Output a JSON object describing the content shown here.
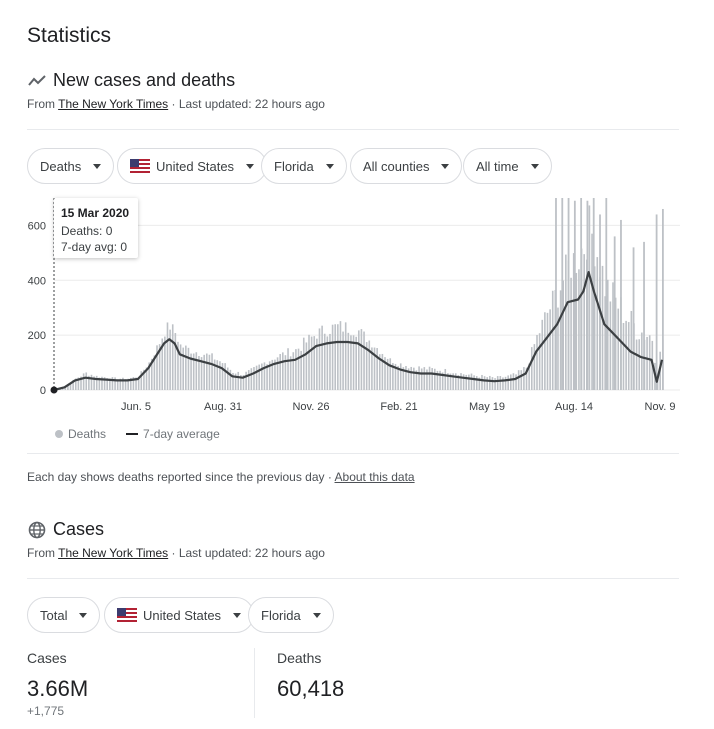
{
  "page_title": "Statistics",
  "section1": {
    "title": "New cases and deaths",
    "icon": "trend-icon",
    "source_prefix": "From ",
    "source_link": "The New York Times",
    "updated": " · Last updated: 22 hours ago",
    "filters": [
      {
        "label": "Deaths",
        "has_flag": false
      },
      {
        "label": "United States",
        "has_flag": true
      },
      {
        "label": "Florida",
        "has_flag": false
      },
      {
        "label": "All counties",
        "has_flag": false
      },
      {
        "label": "All time",
        "has_flag": false
      }
    ],
    "tooltip": {
      "date": "15 Mar 2020",
      "deaths": "Deaths: 0",
      "avg": "7-day avg: 0"
    },
    "legend": {
      "deaths": "Deaths",
      "avg": "7-day average"
    },
    "note": "Each day shows deaths reported since the previous day",
    "note_sep": " · ",
    "note_link": "About this data"
  },
  "chart_data": {
    "type": "bar",
    "y_ticks": [
      "0",
      "200",
      "400",
      "600"
    ],
    "x_ticks": [
      "Jun. 5",
      "Aug. 31",
      "Nov. 26",
      "Feb. 21",
      "May 19",
      "Aug. 14",
      "Nov. 9"
    ],
    "ylim": [
      0,
      700
    ],
    "series": [
      {
        "name": "Deaths",
        "color": "#bdc1c6"
      },
      {
        "name": "7-day average",
        "color": "#3c4043"
      }
    ],
    "avg_curve": [
      [
        0,
        0
      ],
      [
        10,
        10
      ],
      [
        20,
        35
      ],
      [
        30,
        45
      ],
      [
        40,
        40
      ],
      [
        50,
        38
      ],
      [
        60,
        35
      ],
      [
        70,
        35
      ],
      [
        80,
        40
      ],
      [
        90,
        80
      ],
      [
        100,
        140
      ],
      [
        105,
        170
      ],
      [
        110,
        185
      ],
      [
        115,
        170
      ],
      [
        120,
        130
      ],
      [
        130,
        115
      ],
      [
        140,
        105
      ],
      [
        150,
        95
      ],
      [
        160,
        80
      ],
      [
        170,
        50
      ],
      [
        180,
        45
      ],
      [
        190,
        60
      ],
      [
        200,
        80
      ],
      [
        210,
        95
      ],
      [
        220,
        105
      ],
      [
        230,
        110
      ],
      [
        240,
        130
      ],
      [
        250,
        160
      ],
      [
        260,
        170
      ],
      [
        270,
        175
      ],
      [
        280,
        175
      ],
      [
        290,
        170
      ],
      [
        300,
        145
      ],
      [
        310,
        115
      ],
      [
        320,
        90
      ],
      [
        330,
        75
      ],
      [
        340,
        65
      ],
      [
        350,
        60
      ],
      [
        360,
        60
      ],
      [
        370,
        55
      ],
      [
        380,
        50
      ],
      [
        390,
        45
      ],
      [
        400,
        40
      ],
      [
        410,
        35
      ],
      [
        420,
        32
      ],
      [
        430,
        35
      ],
      [
        440,
        40
      ],
      [
        450,
        60
      ],
      [
        460,
        140
      ],
      [
        470,
        190
      ],
      [
        480,
        240
      ],
      [
        490,
        320
      ],
      [
        500,
        330
      ],
      [
        505,
        360
      ],
      [
        510,
        430
      ],
      [
        515,
        360
      ],
      [
        520,
        300
      ],
      [
        525,
        240
      ],
      [
        530,
        220
      ],
      [
        540,
        180
      ],
      [
        550,
        140
      ],
      [
        560,
        120
      ],
      [
        570,
        110
      ],
      [
        575,
        30
      ],
      [
        580,
        110
      ]
    ],
    "bar_envelope": [
      [
        0,
        0
      ],
      [
        10,
        15
      ],
      [
        20,
        45
      ],
      [
        30,
        70
      ],
      [
        40,
        55
      ],
      [
        50,
        50
      ],
      [
        60,
        45
      ],
      [
        70,
        45
      ],
      [
        80,
        55
      ],
      [
        90,
        110
      ],
      [
        100,
        190
      ],
      [
        105,
        240
      ],
      [
        110,
        260
      ],
      [
        115,
        230
      ],
      [
        120,
        180
      ],
      [
        130,
        160
      ],
      [
        140,
        150
      ],
      [
        150,
        135
      ],
      [
        160,
        110
      ],
      [
        170,
        75
      ],
      [
        180,
        65
      ],
      [
        190,
        85
      ],
      [
        200,
        110
      ],
      [
        210,
        130
      ],
      [
        220,
        150
      ],
      [
        230,
        165
      ],
      [
        240,
        200
      ],
      [
        250,
        230
      ],
      [
        260,
        250
      ],
      [
        270,
        260
      ],
      [
        280,
        255
      ],
      [
        290,
        240
      ],
      [
        300,
        200
      ],
      [
        310,
        160
      ],
      [
        320,
        120
      ],
      [
        330,
        105
      ],
      [
        340,
        95
      ],
      [
        350,
        90
      ],
      [
        360,
        85
      ],
      [
        370,
        80
      ],
      [
        380,
        75
      ],
      [
        390,
        65
      ],
      [
        400,
        60
      ],
      [
        410,
        55
      ],
      [
        420,
        50
      ],
      [
        430,
        55
      ],
      [
        440,
        65
      ],
      [
        450,
        95
      ],
      [
        460,
        220
      ],
      [
        470,
        330
      ],
      [
        480,
        420
      ],
      [
        490,
        520
      ],
      [
        500,
        580
      ],
      [
        505,
        620
      ],
      [
        510,
        680
      ],
      [
        515,
        640
      ],
      [
        520,
        560
      ],
      [
        525,
        460
      ],
      [
        530,
        420
      ],
      [
        540,
        360
      ],
      [
        550,
        300
      ],
      [
        560,
        260
      ],
      [
        570,
        240
      ],
      [
        575,
        80
      ],
      [
        580,
        230
      ]
    ],
    "spikes": [
      [
        478,
        700
      ],
      [
        484,
        700
      ],
      [
        490,
        700
      ],
      [
        496,
        690
      ],
      [
        502,
        700
      ],
      [
        508,
        690
      ],
      [
        514,
        700
      ],
      [
        520,
        640
      ],
      [
        526,
        700
      ],
      [
        534,
        560
      ],
      [
        540,
        620
      ],
      [
        552,
        520
      ],
      [
        562,
        540
      ],
      [
        574,
        640
      ],
      [
        580,
        660
      ]
    ]
  },
  "section2": {
    "title": "Cases",
    "icon": "globe-icon",
    "source_prefix": "From ",
    "source_link": "The New York Times",
    "updated": " · Last updated: 22 hours ago",
    "filters": [
      {
        "label": "Total",
        "has_flag": false
      },
      {
        "label": "United States",
        "has_flag": true
      },
      {
        "label": "Florida",
        "has_flag": false
      }
    ],
    "stats": {
      "cases_label": "Cases",
      "cases_value": "3.66M",
      "cases_delta": "+1,775",
      "deaths_label": "Deaths",
      "deaths_value": "60,418"
    }
  }
}
